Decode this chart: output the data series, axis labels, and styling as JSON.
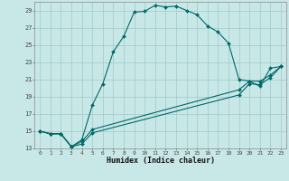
{
  "xlabel": "Humidex (Indice chaleur)",
  "bg_color": "#c8e8e8",
  "line_color": "#006868",
  "grid_color": "#a0c8c8",
  "xlim": [
    -0.5,
    23.5
  ],
  "ylim": [
    13,
    30
  ],
  "yticks": [
    13,
    15,
    17,
    19,
    21,
    23,
    25,
    27,
    29
  ],
  "xticks": [
    0,
    1,
    2,
    3,
    4,
    5,
    6,
    7,
    8,
    9,
    10,
    11,
    12,
    13,
    14,
    15,
    16,
    17,
    18,
    19,
    20,
    21,
    22,
    23
  ],
  "series": [
    {
      "x": [
        0,
        1,
        2,
        3,
        4,
        5,
        6,
        7,
        8,
        9,
        10,
        11,
        12,
        13,
        14,
        15,
        16,
        17,
        18,
        19,
        20,
        21,
        22,
        23
      ],
      "y": [
        15.0,
        14.7,
        14.7,
        13.2,
        14.0,
        18.0,
        20.5,
        24.2,
        26.0,
        28.8,
        28.9,
        29.6,
        29.4,
        29.5,
        29.0,
        28.5,
        27.2,
        26.5,
        25.2,
        21.0,
        20.8,
        20.2,
        22.3,
        22.5
      ]
    },
    {
      "x": [
        0,
        1,
        2,
        3,
        4,
        5,
        19,
        20,
        21,
        22,
        23
      ],
      "y": [
        15.0,
        14.7,
        14.7,
        13.2,
        13.8,
        15.2,
        19.8,
        20.8,
        20.8,
        21.5,
        22.5
      ]
    },
    {
      "x": [
        0,
        1,
        2,
        3,
        4,
        5,
        19,
        20,
        21,
        22,
        23
      ],
      "y": [
        15.0,
        14.7,
        14.7,
        13.2,
        13.5,
        14.8,
        19.2,
        20.5,
        20.4,
        21.2,
        22.5
      ]
    }
  ]
}
